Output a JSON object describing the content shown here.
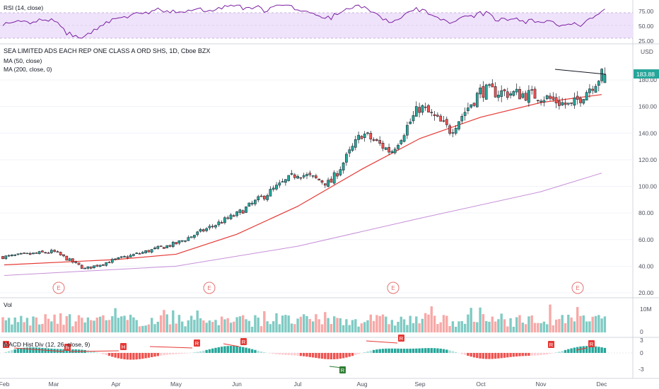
{
  "header": {
    "symbol_title": "SEA LIMITED ADS EACH REP ONE CLASS A ORD SHS, 1D, Cboe BZX",
    "ma50_label": "MA (50, close)",
    "ma200_label": "MA (200, close, 0)",
    "rsi_label": "RSI (14, close)",
    "vol_label": "Vol",
    "macd_label": "MACD Hist Div (12, 26, close, 9)",
    "currency": "USD",
    "last_price": "183.88"
  },
  "colors": {
    "up": "#26a69a",
    "down": "#ef5350",
    "ma50": "#e53935",
    "ma200": "#c68fd8",
    "rsi": "#7b1fa2",
    "rsi_band": "#efe3fb",
    "price_badge": "#26a69a",
    "earnings": "#e57373",
    "divergence_r": "#e53935",
    "divergence_h": "#e53935",
    "divergence_bull": "#2e7d32"
  },
  "chart_data": {
    "type": "candlestick",
    "title": "SEA LIMITED ADS EACH REP ONE CLASS A ORD SHS, 1D, Cboe BZX",
    "x_labels": [
      "Feb",
      "Mar",
      "Apr",
      "May",
      "Jun",
      "Jul",
      "Aug",
      "Sep",
      "Oct",
      "Nov",
      "Dec"
    ],
    "price_axis": {
      "ticks": [
        20,
        40,
        60,
        80,
        100,
        120,
        140,
        160,
        180
      ],
      "unit": "USD",
      "last": 183.88
    },
    "rsi_axis": {
      "ticks": [
        "25.00",
        "50.00",
        "75.00"
      ],
      "band": [
        30,
        70
      ]
    },
    "volume_axis": {
      "ticks": [
        "0",
        "10M"
      ]
    },
    "macd_axis": {
      "ticks": [
        "-3",
        "0",
        "3"
      ]
    },
    "earnings_markers": [
      {
        "label": "E",
        "month": "Mar"
      },
      {
        "label": "E",
        "month": "May"
      },
      {
        "label": "E",
        "month": "Aug"
      },
      {
        "label": "E",
        "month": "Nov"
      }
    ],
    "price_path_anchors": [
      {
        "x": "Feb",
        "close": 47
      },
      {
        "x": "Mar",
        "close": 51
      },
      {
        "x": "Mar-mid",
        "close": 38
      },
      {
        "x": "Apr",
        "close": 45
      },
      {
        "x": "May",
        "close": 57
      },
      {
        "x": "Jun",
        "close": 79
      },
      {
        "x": "Jul",
        "close": 110
      },
      {
        "x": "Jul-mid",
        "close": 102
      },
      {
        "x": "Aug",
        "close": 140
      },
      {
        "x": "Aug-mid",
        "close": 126
      },
      {
        "x": "Sep",
        "close": 160
      },
      {
        "x": "Sep-mid",
        "close": 142
      },
      {
        "x": "Oct",
        "close": 172
      },
      {
        "x": "Nov",
        "close": 168
      },
      {
        "x": "Nov-mid",
        "close": 160
      },
      {
        "x": "Dec",
        "close": 183.88
      }
    ],
    "ma50_path": [
      {
        "x": "Feb",
        "value": 41
      },
      {
        "x": "Apr",
        "value": 45
      },
      {
        "x": "May",
        "value": 49
      },
      {
        "x": "Jun",
        "value": 64
      },
      {
        "x": "Jul",
        "value": 85
      },
      {
        "x": "Aug",
        "value": 113
      },
      {
        "x": "Sep",
        "value": 136
      },
      {
        "x": "Oct",
        "value": 152
      },
      {
        "x": "Nov",
        "value": 163
      },
      {
        "x": "Dec",
        "value": 169
      }
    ],
    "ma200_path": [
      {
        "x": "Feb",
        "value": 33
      },
      {
        "x": "May",
        "value": 40
      },
      {
        "x": "Jul",
        "value": 55
      },
      {
        "x": "Sep",
        "value": 76
      },
      {
        "x": "Nov",
        "value": 96
      },
      {
        "x": "Dec",
        "value": 110
      }
    ],
    "divergence_labels": [
      "R",
      "R",
      "H",
      "R",
      "R",
      "R",
      "R",
      "R"
    ],
    "bull_divergence_labels": [
      "R"
    ]
  }
}
